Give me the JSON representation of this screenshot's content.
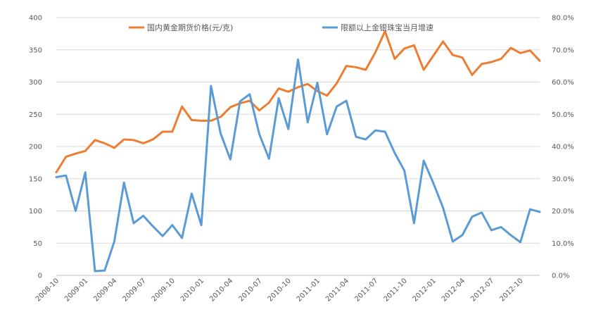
{
  "chart_data": {
    "type": "line",
    "title": "",
    "xlabel": "",
    "ylabel": "",
    "legend_position": "top",
    "grid": "horizontal",
    "x_tick_labels": [
      "2008-10",
      "2009-01",
      "2009-04",
      "2009-07",
      "2009-10",
      "2010-01",
      "2010-04",
      "2010-07",
      "2010-10",
      "2011-01",
      "2011-04",
      "2011-07",
      "2011-10",
      "2012-01",
      "2012-04",
      "2012-07",
      "2012-10"
    ],
    "y_left": {
      "min": 0,
      "max": 400,
      "ticks": [
        "0",
        "50",
        "100",
        "150",
        "200",
        "250",
        "300",
        "350",
        "400"
      ]
    },
    "y_right": {
      "min": 0,
      "max": 80,
      "ticks": [
        "0.0%",
        "10.0%",
        "20.0%",
        "30.0%",
        "40.0%",
        "50.0%",
        "60.0%",
        "70.0%",
        "80.0%"
      ]
    },
    "series": [
      {
        "name": "国内黄金期货价格(元/克)",
        "axis": "left",
        "color": "#ED7D31",
        "values": [
          160,
          184,
          189,
          193,
          210,
          205,
          198,
          211,
          210,
          205,
          211,
          223,
          223,
          262,
          241,
          240,
          240,
          246,
          261,
          267,
          271,
          256,
          268,
          290,
          285,
          292,
          297,
          286,
          279,
          298,
          325,
          323,
          319,
          346,
          379,
          336,
          352,
          357,
          319,
          341,
          363,
          342,
          338,
          311,
          328,
          331,
          336,
          353,
          345,
          349,
          333
        ]
      },
      {
        "name": "限额以上金银珠宝当月增速",
        "axis": "right",
        "color": "#5B9BD5",
        "values": [
          30.5,
          31,
          20,
          32,
          1.3,
          1.5,
          10.5,
          28.8,
          16.2,
          18.5,
          15.2,
          12.2,
          15.6,
          11.6,
          25.4,
          15.6,
          58.8,
          44,
          36,
          54,
          56.2,
          43.8,
          36.2,
          55,
          45.4,
          67,
          47.5,
          59.8,
          43.8,
          52.4,
          54.2,
          43,
          42.2,
          45,
          44.6,
          38,
          32.5,
          16.2,
          35.6,
          28.6,
          21,
          10.5,
          12.5,
          18.2,
          19.5,
          14,
          15,
          12.5,
          10.3,
          20.5,
          19.7
        ]
      }
    ]
  }
}
